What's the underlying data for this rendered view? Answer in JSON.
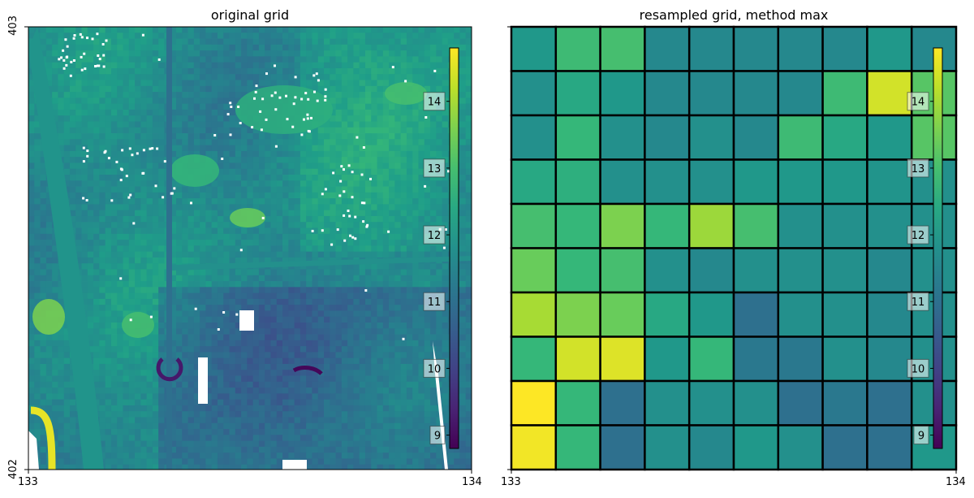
{
  "chart_data": [
    {
      "type": "heatmap",
      "title": "original grid",
      "x_ticks": [
        "133",
        "134"
      ],
      "y_ticks": [
        "403",
        "402"
      ],
      "xlim": [
        133,
        134
      ],
      "ylim": [
        402,
        403
      ],
      "colormap": "viridis",
      "colorbar": {
        "range": [
          8.8,
          14.8
        ],
        "ticks": [
          "9",
          "10",
          "11",
          "12",
          "13",
          "14"
        ]
      },
      "features": [
        {
          "name": "diagonal road",
          "value": 11.9
        },
        {
          "name": "vertical road",
          "value": 11.0
        },
        {
          "name": "horizontal road",
          "value": 11.8
        },
        {
          "name": "yellow ring",
          "value": 14.6
        },
        {
          "name": "dark ring",
          "value": 9.2
        },
        {
          "name": "dark streak",
          "value": 8.9
        }
      ]
    },
    {
      "type": "heatmap",
      "title": "resampled grid, method max",
      "x_ticks": [
        "133",
        "134"
      ],
      "y_ticks": [],
      "xlim": [
        133,
        134
      ],
      "ylim": [
        402,
        403
      ],
      "colormap": "viridis",
      "colorbar": {
        "range": [
          8.8,
          14.8
        ],
        "ticks": [
          "9",
          "10",
          "11",
          "12",
          "13",
          "14"
        ]
      },
      "grid": true,
      "rows": 10,
      "cols": 10,
      "values": [
        [
          12.0,
          12.9,
          13.0,
          11.6,
          11.6,
          11.6,
          11.6,
          11.6,
          12.0,
          11.6
        ],
        [
          11.8,
          12.4,
          12.0,
          11.6,
          11.6,
          11.6,
          11.6,
          12.9,
          14.4,
          13.2
        ],
        [
          11.8,
          12.8,
          11.8,
          11.6,
          11.8,
          11.6,
          12.9,
          12.4,
          12.0,
          13.2
        ],
        [
          12.4,
          12.6,
          11.8,
          11.8,
          11.8,
          12.0,
          12.0,
          12.0,
          11.9,
          11.8
        ],
        [
          13.0,
          12.8,
          13.6,
          12.8,
          13.9,
          13.0,
          11.8,
          11.8,
          11.8,
          11.8
        ],
        [
          13.4,
          12.8,
          13.0,
          11.8,
          11.6,
          11.8,
          11.8,
          11.8,
          11.6,
          11.8
        ],
        [
          14.0,
          13.6,
          13.4,
          12.4,
          12.0,
          11.0,
          11.8,
          11.8,
          11.6,
          11.8
        ],
        [
          12.8,
          14.4,
          14.5,
          12.0,
          12.8,
          11.2,
          11.2,
          11.8,
          11.6,
          11.8
        ],
        [
          14.8,
          12.8,
          11.0,
          11.8,
          11.8,
          11.8,
          11.0,
          11.2,
          11.0,
          11.8
        ],
        [
          14.7,
          12.8,
          11.0,
          11.8,
          11.6,
          12.0,
          11.8,
          11.0,
          11.0,
          12.0
        ]
      ]
    }
  ]
}
